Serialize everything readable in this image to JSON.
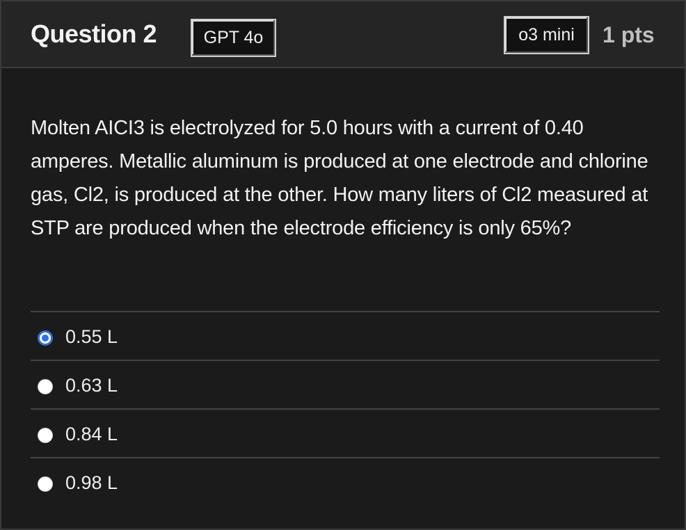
{
  "header": {
    "title": "Question 2",
    "tag_left": "GPT 4o",
    "tag_right": "o3 mini",
    "points": "1 pts"
  },
  "question": {
    "text": "Molten AICI3 is electrolyzed for 5.0 hours with a current of 0.40 amperes. Metallic aluminum is produced at one electrode and chlorine gas, Cl2, is produced at the other. How many liters of Cl2 measured at STP are produced when the electrode efficiency is only 65%?"
  },
  "answers": [
    {
      "label": "0.55 L",
      "selected": true
    },
    {
      "label": "0.63 L",
      "selected": false
    },
    {
      "label": "0.84 L",
      "selected": false
    },
    {
      "label": "0.98 L",
      "selected": false
    }
  ],
  "colors": {
    "accent": "#2f6ee8",
    "background": "#1b1b1b",
    "header_background": "#252525"
  }
}
